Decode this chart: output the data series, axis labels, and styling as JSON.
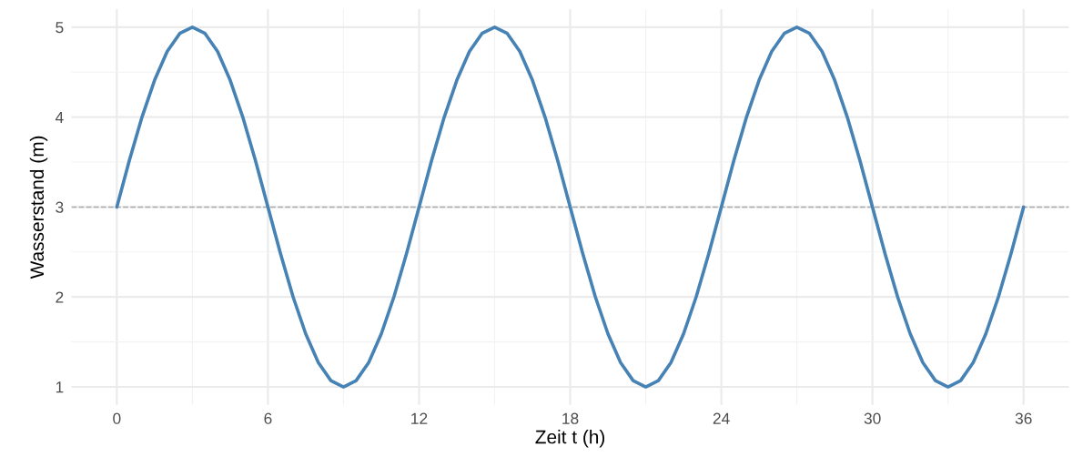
{
  "chart_data": {
    "type": "line",
    "xlabel": "Zeit t (h)",
    "ylabel": "Wasserstand (m)",
    "x": [
      0,
      0.5,
      1,
      1.5,
      2,
      2.5,
      3,
      3.5,
      4,
      4.5,
      5,
      5.5,
      6,
      6.5,
      7,
      7.5,
      8,
      8.5,
      9,
      9.5,
      10,
      10.5,
      11,
      11.5,
      12,
      12.5,
      13,
      13.5,
      14,
      14.5,
      15,
      15.5,
      16,
      16.5,
      17,
      17.5,
      18,
      18.5,
      19,
      19.5,
      20,
      20.5,
      21,
      21.5,
      22,
      22.5,
      23,
      23.5,
      24,
      24.5,
      25,
      25.5,
      26,
      26.5,
      27,
      27.5,
      28,
      28.5,
      29,
      29.5,
      30,
      30.5,
      31,
      31.5,
      32,
      32.5,
      33,
      33.5,
      34,
      34.5,
      35,
      35.5,
      36
    ],
    "series": [
      {
        "color": "#4682b4",
        "values": [
          3,
          3.52,
          4,
          4.41,
          4.73,
          4.93,
          5,
          4.93,
          4.73,
          4.41,
          4,
          3.52,
          3,
          2.48,
          2,
          1.59,
          1.27,
          1.07,
          1,
          1.07,
          1.27,
          1.59,
          2,
          2.48,
          3,
          3.52,
          4,
          4.41,
          4.73,
          4.93,
          5,
          4.93,
          4.73,
          4.41,
          4,
          3.52,
          3,
          2.48,
          2,
          1.59,
          1.27,
          1.07,
          1,
          1.07,
          1.27,
          1.59,
          2,
          2.48,
          3,
          3.52,
          4,
          4.41,
          4.73,
          4.93,
          5,
          4.93,
          4.73,
          4.41,
          4,
          3.52,
          3,
          2.48,
          2,
          1.59,
          1.27,
          1.07,
          1,
          1.07,
          1.27,
          1.59,
          2,
          2.48,
          3
        ]
      }
    ],
    "xlim": [
      -1.8,
      37.8
    ],
    "xticks": [
      0,
      6,
      12,
      18,
      24,
      30,
      36
    ],
    "ylim": [
      0.8,
      5.2
    ],
    "yticks": [
      1,
      2,
      3,
      4,
      5
    ],
    "ref_lines": [
      {
        "axis": "y",
        "value": 3,
        "color": "#aaaaaa",
        "line_style": "dashed"
      }
    ],
    "grid": true,
    "line_style": "solid",
    "marker": "none"
  }
}
